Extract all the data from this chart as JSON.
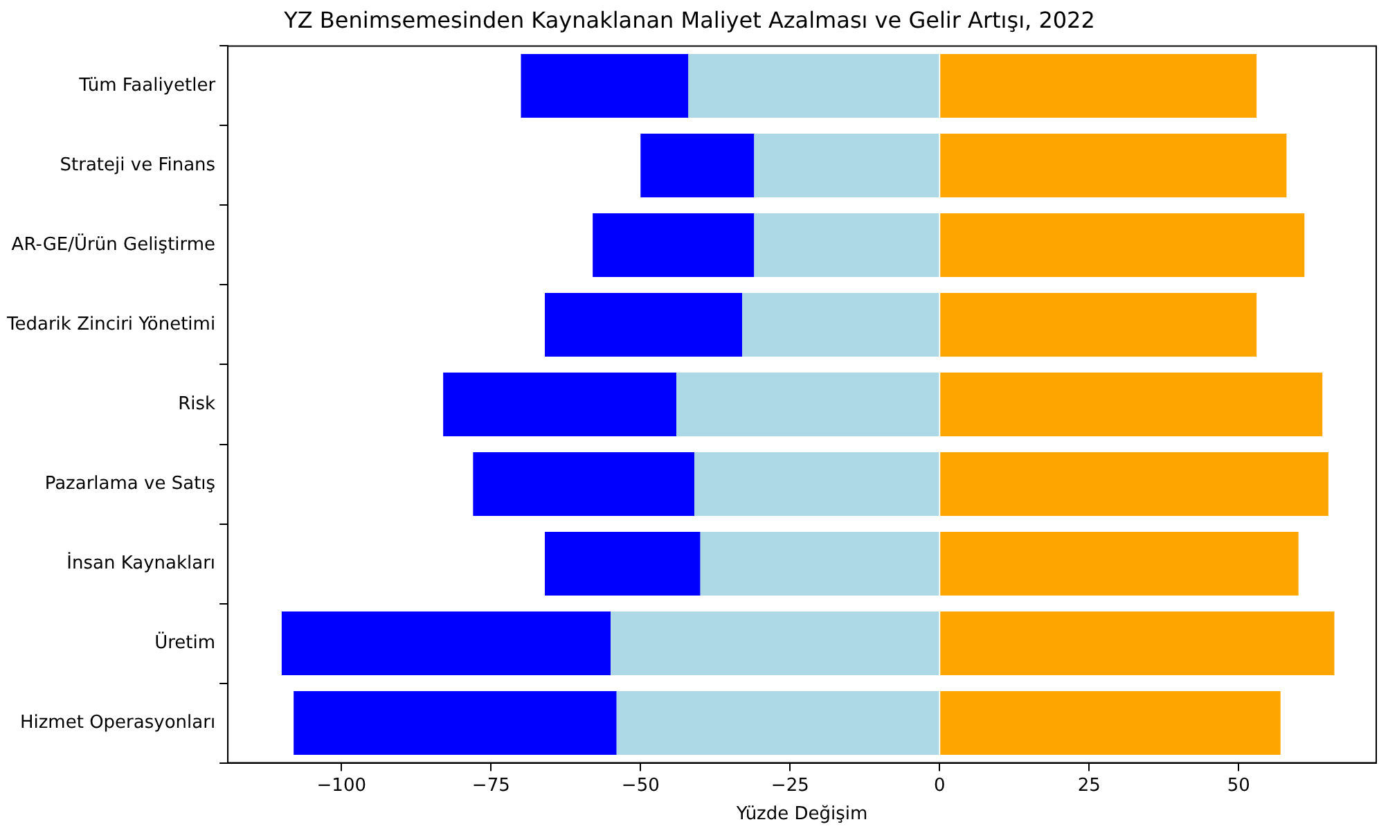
{
  "chart_data": {
    "type": "bar",
    "orientation": "horizontal",
    "stacked": true,
    "title": "YZ Benimsemesinden Kaynaklanan Maliyet Azalması ve Gelir Artışı, 2022",
    "xlabel": "Yüzde Değişim",
    "categories": [
      "Tüm Faaliyetler",
      "Strateji ve Finans",
      "AR-GE/Ürün Geliştirme",
      "Tedarik Zinciri Yönetimi",
      "Risk",
      "Pazarlama ve Satış",
      "İnsan Kaynakları",
      "Üretim",
      "Hizmet Operasyonları"
    ],
    "series": [
      {
        "color": "#add8e6",
        "values": [
          -42,
          -31,
          -31,
          -33,
          -44,
          -41,
          -40,
          -55,
          -54
        ]
      },
      {
        "color": "#0000ff",
        "values": [
          -28,
          -19,
          -27,
          -33,
          -39,
          -37,
          -26,
          -55,
          -54
        ]
      },
      {
        "color": "#ffa500",
        "values": [
          53,
          58,
          61,
          53,
          64,
          65,
          60,
          66,
          57
        ]
      }
    ],
    "xlim": [
      -119,
      73
    ],
    "xticks": [
      {
        "value": -100,
        "label": "−100"
      },
      {
        "value": -75,
        "label": "−75"
      },
      {
        "value": -50,
        "label": "−50"
      },
      {
        "value": -25,
        "label": "−25"
      },
      0,
      25,
      50
    ],
    "grid": false,
    "legend": false
  }
}
